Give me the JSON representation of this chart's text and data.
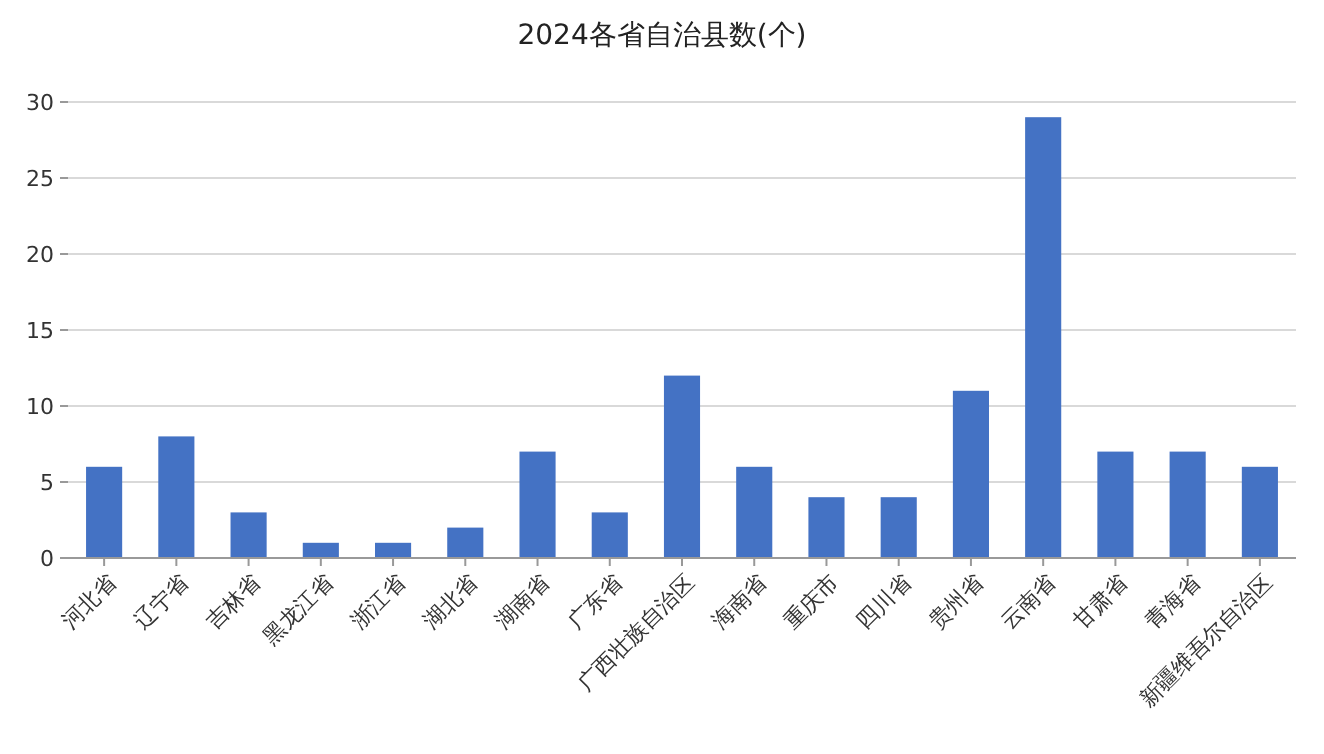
{
  "chart_data": {
    "type": "bar",
    "title": "2024各省自治县数(个)",
    "categories": [
      "河北省",
      "辽宁省",
      "吉林省",
      "黑龙江省",
      "浙江省",
      "湖北省",
      "湖南省",
      "广东省",
      "广西壮族自治区",
      "海南省",
      "重庆市",
      "四川省",
      "贵州省",
      "云南省",
      "甘肃省",
      "青海省",
      "新疆维吾尔自治区"
    ],
    "values": [
      6,
      8,
      3,
      1,
      1,
      2,
      7,
      3,
      12,
      6,
      4,
      4,
      11,
      29,
      7,
      7,
      6
    ],
    "color": "#4472c4",
    "ylim": [
      0,
      30
    ],
    "yticks": [
      0,
      5,
      10,
      15,
      20,
      25,
      30
    ],
    "grid": "y"
  }
}
